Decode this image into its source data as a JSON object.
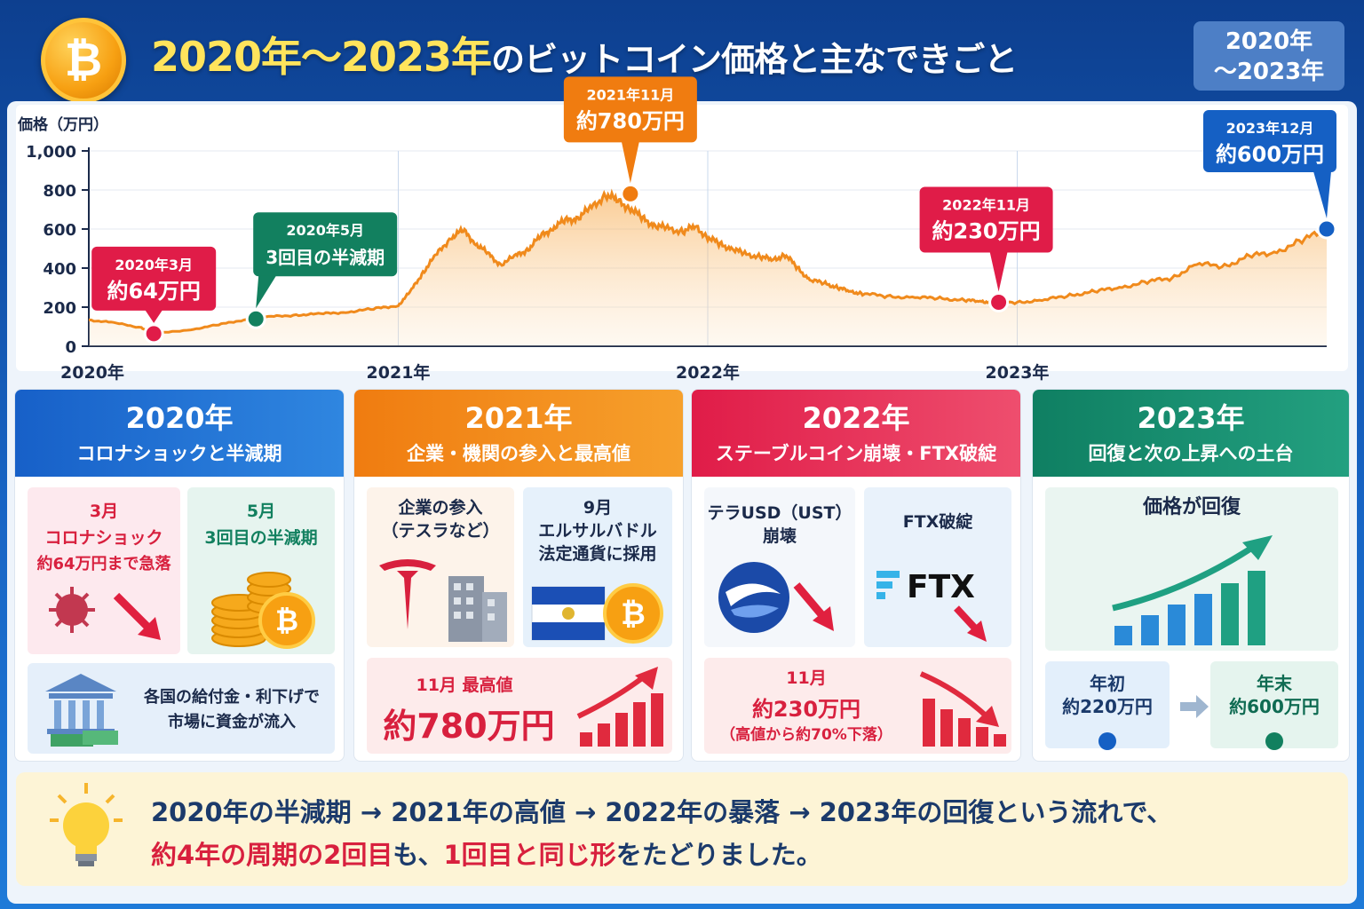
{
  "header": {
    "coin_symbol": "₿",
    "title_year1": "2020年",
    "title_sep": "～",
    "title_year2": "2023年",
    "title_rest": "のビットコイン価格と主なできごと",
    "badge_line1": "2020年",
    "badge_line2": "～2023年"
  },
  "chart_data": {
    "type": "line",
    "ylabel": "価格（万円）",
    "ylim": [
      0,
      1000
    ],
    "yticks": [
      "0",
      "200",
      "400",
      "600",
      "800",
      "1,000"
    ],
    "xticks": [
      "2020年",
      "2021年",
      "2022年",
      "2023年"
    ],
    "x": [
      2020.0,
      2020.08,
      2020.17,
      2020.21,
      2020.33,
      2020.42,
      2020.5,
      2020.58,
      2020.67,
      2020.75,
      2020.83,
      2020.92,
      2021.0,
      2021.04,
      2021.08,
      2021.12,
      2021.17,
      2021.21,
      2021.25,
      2021.29,
      2021.33,
      2021.38,
      2021.42,
      2021.46,
      2021.5,
      2021.54,
      2021.58,
      2021.62,
      2021.67,
      2021.71,
      2021.75,
      2021.79,
      2021.83,
      2021.87,
      2021.92,
      2021.96,
      2022.0,
      2022.04,
      2022.08,
      2022.12,
      2022.17,
      2022.21,
      2022.25,
      2022.29,
      2022.33,
      2022.38,
      2022.42,
      2022.46,
      2022.5,
      2022.58,
      2022.67,
      2022.75,
      2022.83,
      2022.88,
      2022.92,
      2023.0,
      2023.08,
      2023.17,
      2023.25,
      2023.33,
      2023.42,
      2023.5,
      2023.58,
      2023.67,
      2023.75,
      2023.83,
      2023.92,
      2024.0
    ],
    "values": [
      135,
      120,
      95,
      64,
      85,
      110,
      135,
      150,
      160,
      165,
      175,
      190,
      210,
      280,
      380,
      460,
      560,
      590,
      530,
      470,
      420,
      460,
      500,
      560,
      610,
      640,
      660,
      700,
      780,
      740,
      710,
      650,
      620,
      600,
      590,
      610,
      560,
      520,
      500,
      470,
      460,
      440,
      470,
      400,
      340,
      320,
      300,
      280,
      270,
      255,
      250,
      245,
      235,
      230,
      225,
      225,
      235,
      260,
      280,
      300,
      330,
      350,
      420,
      410,
      460,
      480,
      540,
      600
    ],
    "annotations": [
      {
        "x": 2020.21,
        "value": 64,
        "date": "2020年3月",
        "text": "約64万円",
        "color": "#e01c48"
      },
      {
        "x": 2020.54,
        "value": 140,
        "date": "2020年5月",
        "text": "3回目の半減期",
        "color": "#12805f"
      },
      {
        "x": 2021.75,
        "value": 780,
        "date": "2021年11月",
        "text": "約780万円",
        "color": "#f07c10"
      },
      {
        "x": 2022.94,
        "value": 225,
        "date": "2022年11月",
        "text": "約230万円",
        "color": "#e01c48"
      },
      {
        "x": 2024.0,
        "value": 600,
        "date": "2023年12月",
        "text": "約600万円",
        "color": "#1560c4"
      }
    ],
    "line_color": "#f08a1c",
    "grid": true
  },
  "cards": [
    {
      "year": "2020年",
      "subtitle": "コロナショックと半減期",
      "color": "#1a6ad0",
      "box1": [
        "3月",
        "コロナショック",
        "約64万円まで急落"
      ],
      "box2": [
        "5月",
        "3回目の半減期"
      ],
      "box3": [
        "各国の給付金・利下げで",
        "市場に資金が流入"
      ]
    },
    {
      "year": "2021年",
      "subtitle": "企業・機関の参入と最高値",
      "color": "#f07c10",
      "box1": [
        "企業の参入",
        "（テスラなど）"
      ],
      "box2": [
        "9月",
        "エルサルバドル",
        "法定通貨に採用"
      ],
      "box3_label": "11月 最高値",
      "box3_value": "約780万円"
    },
    {
      "year": "2022年",
      "subtitle": "ステーブルコイン崩壊・FTX破綻",
      "color": "#e01c48",
      "box1": [
        "テラUSD（UST）",
        "崩壊"
      ],
      "box2": [
        "FTX破綻"
      ],
      "ftx_logo": "FTX",
      "box3": [
        "11月",
        "約230万円",
        "（高値から約70%下落）"
      ]
    },
    {
      "year": "2023年",
      "subtitle": "回復と次の上昇への土台",
      "color": "#13896a",
      "box1": [
        "価格が回復"
      ],
      "start_label": "年初",
      "start_value": "約220万円",
      "end_label": "年末",
      "end_value": "約600万円"
    }
  ],
  "footer": {
    "line1": "2020年の半減期 → 2021年の高値 → 2022年の暴落 → 2023年の回復という流れで、",
    "line2_red1": "約4年の周期の2回目",
    "line2_mid": "も、",
    "line2_red2": "1回目と同じ形",
    "line2_end": "をたどりました。"
  }
}
